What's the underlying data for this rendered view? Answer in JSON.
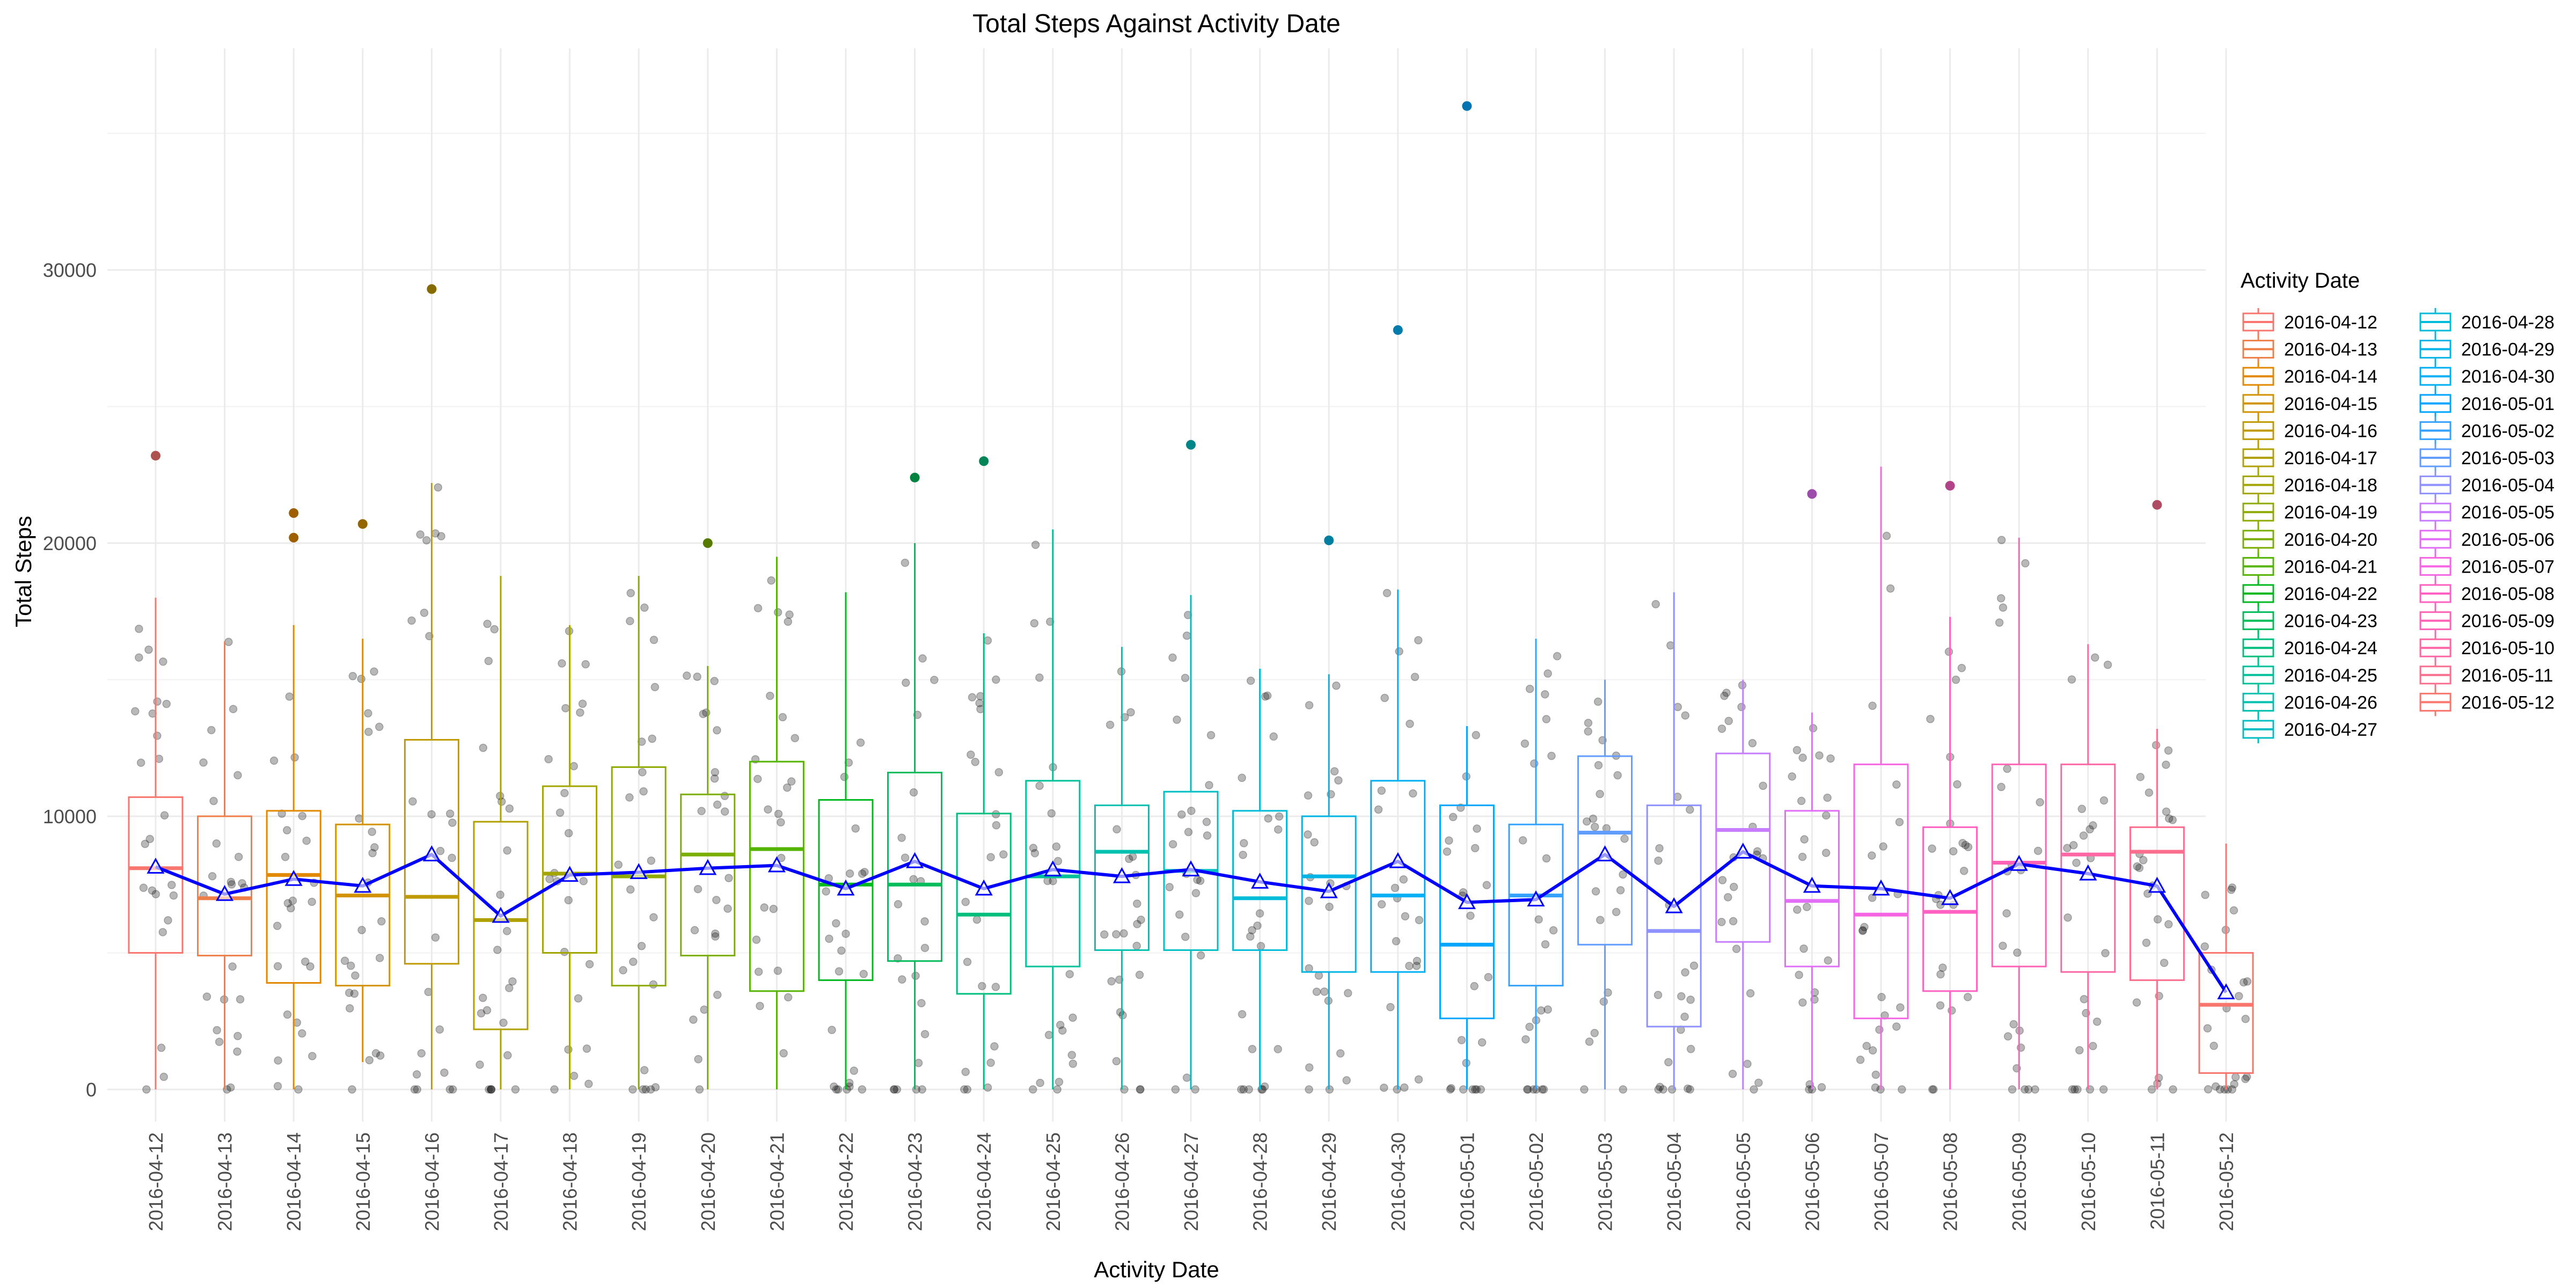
{
  "chart_data": {
    "type": "box",
    "title": "Total Steps Against Activity Date",
    "xlabel": "Activity Date",
    "ylabel": "Total Steps",
    "ylim": [
      -3000,
      37800
    ],
    "y_ticks": [
      0,
      10000,
      20000,
      30000
    ],
    "grid": true,
    "legend": {
      "title": "Activity Date",
      "placement": "right",
      "columns": 2
    },
    "categories": [
      "2016-04-12",
      "2016-04-13",
      "2016-04-14",
      "2016-04-15",
      "2016-04-16",
      "2016-04-17",
      "2016-04-18",
      "2016-04-19",
      "2016-04-20",
      "2016-04-21",
      "2016-04-22",
      "2016-04-23",
      "2016-04-24",
      "2016-04-25",
      "2016-04-26",
      "2016-04-27",
      "2016-04-28",
      "2016-04-29",
      "2016-04-30",
      "2016-05-01",
      "2016-05-02",
      "2016-05-03",
      "2016-05-04",
      "2016-05-05",
      "2016-05-06",
      "2016-05-07",
      "2016-05-08",
      "2016-05-09",
      "2016-05-10",
      "2016-05-11",
      "2016-05-12"
    ],
    "colors": [
      "#F8766D",
      "#EF7F48",
      "#E38900",
      "#D39200",
      "#C09B00",
      "#B0A000",
      "#A3A500",
      "#8FAA00",
      "#7CAE00",
      "#55B400",
      "#00B81F",
      "#00BC5B",
      "#00BF7D",
      "#00C19A",
      "#00C0B0",
      "#00BFC4",
      "#00BCD8",
      "#00B5E6",
      "#00B0F6",
      "#00A5FF",
      "#35A2FF",
      "#619CFF",
      "#8F91FF",
      "#C77CFF",
      "#E26EF7",
      "#F565E3",
      "#FF61C3",
      "#FF63B6",
      "#FF67A4",
      "#FB6E8E",
      "#F8766D"
    ],
    "boxes": [
      {
        "q1": 5000,
        "median": 8100,
        "q3": 10700,
        "whisker_low": 0,
        "whisker_high": 18000,
        "mean": 8150,
        "outliers": [
          23200
        ]
      },
      {
        "q1": 4900,
        "median": 7000,
        "q3": 10000,
        "whisker_low": 0,
        "whisker_high": 16400,
        "mean": 7150,
        "outliers": []
      },
      {
        "q1": 3900,
        "median": 7850,
        "q3": 10200,
        "whisker_low": 0,
        "whisker_high": 17000,
        "mean": 7700,
        "outliers": [
          21100,
          20200
        ]
      },
      {
        "q1": 3800,
        "median": 7100,
        "q3": 9700,
        "whisker_low": 1000,
        "whisker_high": 16500,
        "mean": 7450,
        "outliers": [
          20700
        ]
      },
      {
        "q1": 4600,
        "median": 7050,
        "q3": 12800,
        "whisker_low": 0,
        "whisker_high": 22200,
        "mean": 8600,
        "outliers": [
          29300
        ]
      },
      {
        "q1": 2200,
        "median": 6200,
        "q3": 9800,
        "whisker_low": 0,
        "whisker_high": 18800,
        "mean": 6350,
        "outliers": []
      },
      {
        "q1": 5000,
        "median": 7900,
        "q3": 11100,
        "whisker_low": 0,
        "whisker_high": 17000,
        "mean": 7850,
        "outliers": []
      },
      {
        "q1": 3800,
        "median": 7800,
        "q3": 11800,
        "whisker_low": 0,
        "whisker_high": 18800,
        "mean": 7950,
        "outliers": []
      },
      {
        "q1": 4900,
        "median": 8600,
        "q3": 10800,
        "whisker_low": 0,
        "whisker_high": 15500,
        "mean": 8100,
        "outliers": [
          20000
        ]
      },
      {
        "q1": 3600,
        "median": 8800,
        "q3": 12000,
        "whisker_low": 0,
        "whisker_high": 19500,
        "mean": 8200,
        "outliers": []
      },
      {
        "q1": 4000,
        "median": 7500,
        "q3": 10600,
        "whisker_low": 0,
        "whisker_high": 18200,
        "mean": 7350,
        "outliers": []
      },
      {
        "q1": 4700,
        "median": 7500,
        "q3": 11600,
        "whisker_low": 0,
        "whisker_high": 20000,
        "mean": 8350,
        "outliers": [
          22400
        ]
      },
      {
        "q1": 3500,
        "median": 6400,
        "q3": 10100,
        "whisker_low": 0,
        "whisker_high": 16700,
        "mean": 7350,
        "outliers": [
          23000
        ]
      },
      {
        "q1": 4500,
        "median": 7800,
        "q3": 11300,
        "whisker_low": 0,
        "whisker_high": 20500,
        "mean": 8050,
        "outliers": []
      },
      {
        "q1": 5100,
        "median": 8700,
        "q3": 10400,
        "whisker_low": 0,
        "whisker_high": 16200,
        "mean": 7800,
        "outliers": []
      },
      {
        "q1": 5100,
        "median": 8000,
        "q3": 10900,
        "whisker_low": 0,
        "whisker_high": 18100,
        "mean": 8050,
        "outliers": [
          23600
        ]
      },
      {
        "q1": 5100,
        "median": 7000,
        "q3": 10200,
        "whisker_low": 0,
        "whisker_high": 15400,
        "mean": 7600,
        "outliers": []
      },
      {
        "q1": 4300,
        "median": 7800,
        "q3": 10000,
        "whisker_low": 0,
        "whisker_high": 15200,
        "mean": 7250,
        "outliers": [
          20100
        ]
      },
      {
        "q1": 4300,
        "median": 7100,
        "q3": 11300,
        "whisker_low": 0,
        "whisker_high": 18300,
        "mean": 8350,
        "outliers": [
          27800
        ]
      },
      {
        "q1": 2600,
        "median": 5300,
        "q3": 10400,
        "whisker_low": 0,
        "whisker_high": 13300,
        "mean": 6850,
        "outliers": [
          36000
        ]
      },
      {
        "q1": 3800,
        "median": 7100,
        "q3": 9700,
        "whisker_low": 0,
        "whisker_high": 16500,
        "mean": 6950,
        "outliers": []
      },
      {
        "q1": 5300,
        "median": 9400,
        "q3": 12200,
        "whisker_low": 0,
        "whisker_high": 15000,
        "mean": 8600,
        "outliers": []
      },
      {
        "q1": 2300,
        "median": 5800,
        "q3": 10400,
        "whisker_low": 0,
        "whisker_high": 18200,
        "mean": 6700,
        "outliers": []
      },
      {
        "q1": 5400,
        "median": 9500,
        "q3": 12300,
        "whisker_low": 0,
        "whisker_high": 15000,
        "mean": 8700,
        "outliers": []
      },
      {
        "q1": 4500,
        "median": 6900,
        "q3": 10200,
        "whisker_low": 0,
        "whisker_high": 13800,
        "mean": 7450,
        "outliers": [
          21800
        ]
      },
      {
        "q1": 2600,
        "median": 6400,
        "q3": 11900,
        "whisker_low": 0,
        "whisker_high": 22800,
        "mean": 7350,
        "outliers": []
      },
      {
        "q1": 3600,
        "median": 6500,
        "q3": 9600,
        "whisker_low": 0,
        "whisker_high": 17300,
        "mean": 7000,
        "outliers": [
          22100
        ]
      },
      {
        "q1": 4500,
        "median": 8300,
        "q3": 11900,
        "whisker_low": 0,
        "whisker_high": 20200,
        "mean": 8250,
        "outliers": []
      },
      {
        "q1": 4300,
        "median": 8600,
        "q3": 11900,
        "whisker_low": 0,
        "whisker_high": 16300,
        "mean": 7900,
        "outliers": []
      },
      {
        "q1": 4000,
        "median": 8700,
        "q3": 9600,
        "whisker_low": 0,
        "whisker_high": 13200,
        "mean": 7450,
        "outliers": [
          21400
        ]
      },
      {
        "q1": 600,
        "median": 3100,
        "q3": 5000,
        "whisker_low": 0,
        "whisker_high": 9000,
        "mean": 3550,
        "outliers": []
      }
    ],
    "mean_line_color": "#0000FF"
  }
}
